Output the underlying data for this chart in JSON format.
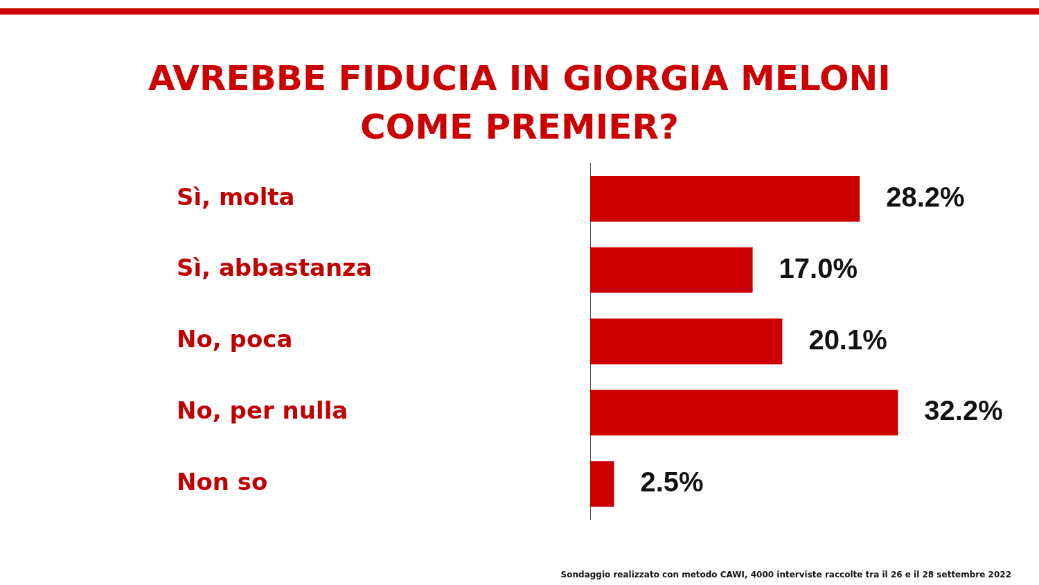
{
  "chart_data": {
    "type": "bar",
    "orientation": "horizontal",
    "title": "AVREBBE FIDUCIA IN GIORGIA MELONI COME PREMIER?",
    "categories": [
      "Sì, molta",
      "Sì, abbastanza",
      "No, poca",
      "No, per nulla",
      "Non so"
    ],
    "values": [
      28.2,
      17.0,
      20.1,
      32.2,
      2.5
    ],
    "value_labels": [
      "28.2%",
      "17.0%",
      "20.1%",
      "32.2%",
      "2.5%"
    ],
    "color": "#cc0000",
    "annotations": [
      "Sondaggio realizzato con metodo CAWI, 4000 interviste raccolte tra il 26 e il 28 settembre 2022"
    ]
  }
}
